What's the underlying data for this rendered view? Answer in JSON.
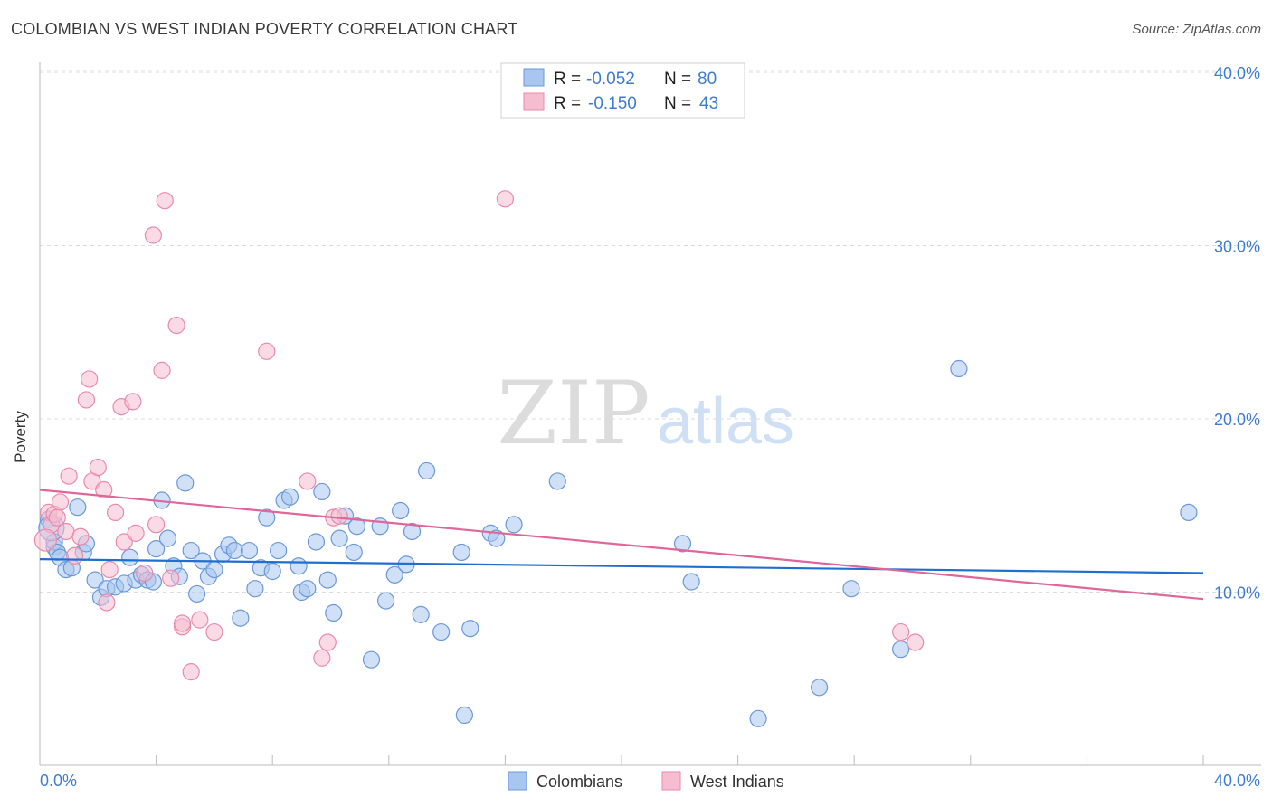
{
  "header": {
    "title": "COLOMBIAN VS WEST INDIAN POVERTY CORRELATION CHART",
    "source": "Source: ZipAtlas.com"
  },
  "watermark": {
    "zip": "ZIP",
    "atlas": "atlas"
  },
  "legend_top": {
    "rows": [
      {
        "r_label": "R = ",
        "r_value": "-0.052",
        "n_label": "N = ",
        "n_value": "80"
      },
      {
        "r_label": "R = ",
        "r_value": "-0.150",
        "n_label": "N = ",
        "n_value": "43"
      }
    ]
  },
  "legend_bottom": [
    "Colombians",
    "West Indians"
  ],
  "colors": {
    "blue_fill": "#a8c6f0",
    "blue_stroke": "#6b98d8",
    "blue_line": "#1f6fd1",
    "pink_fill": "#f6bdd0",
    "pink_stroke": "#e98aab",
    "pink_line": "#e0669a",
    "tick_label": "#3f7bd0",
    "grid": "#dcdcdc"
  },
  "chart_data": {
    "type": "scatter",
    "ylabel": "Poverty",
    "xlim": [
      0,
      40
    ],
    "ylim": [
      0,
      40
    ],
    "x_tick_labels": [
      "0.0%",
      "40.0%"
    ],
    "y_ticks": [
      10,
      20,
      30,
      40
    ],
    "y_tick_labels": [
      "10.0%",
      "20.0%",
      "30.0%",
      "40.0%"
    ],
    "grid": true,
    "series": [
      {
        "name": "Colombians",
        "trend": {
          "x": [
            0,
            40
          ],
          "y": [
            11.9,
            11.1
          ]
        },
        "points": [
          [
            0.3,
            14.2
          ],
          [
            0.5,
            12.6
          ],
          [
            0.5,
            12.9
          ],
          [
            0.6,
            12.3
          ],
          [
            0.7,
            12.0
          ],
          [
            0.9,
            11.3
          ],
          [
            1.1,
            11.4
          ],
          [
            1.3,
            14.9
          ],
          [
            1.5,
            12.3
          ],
          [
            1.6,
            12.8
          ],
          [
            1.9,
            10.7
          ],
          [
            2.1,
            9.7
          ],
          [
            2.3,
            10.2
          ],
          [
            2.6,
            10.3
          ],
          [
            2.9,
            10.5
          ],
          [
            3.1,
            12.0
          ],
          [
            3.3,
            10.7
          ],
          [
            3.5,
            11.0
          ],
          [
            3.7,
            10.7
          ],
          [
            3.9,
            10.6
          ],
          [
            4.0,
            12.5
          ],
          [
            4.2,
            15.3
          ],
          [
            4.4,
            13.1
          ],
          [
            4.6,
            11.5
          ],
          [
            4.8,
            10.9
          ],
          [
            5.0,
            16.3
          ],
          [
            5.2,
            12.4
          ],
          [
            5.4,
            9.9
          ],
          [
            5.6,
            11.8
          ],
          [
            5.8,
            10.9
          ],
          [
            6.0,
            11.3
          ],
          [
            6.3,
            12.2
          ],
          [
            6.5,
            12.7
          ],
          [
            6.7,
            12.4
          ],
          [
            6.9,
            8.5
          ],
          [
            7.2,
            12.4
          ],
          [
            7.4,
            10.2
          ],
          [
            7.6,
            11.4
          ],
          [
            7.8,
            14.3
          ],
          [
            8.0,
            11.2
          ],
          [
            8.2,
            12.4
          ],
          [
            8.4,
            15.3
          ],
          [
            8.6,
            15.5
          ],
          [
            8.9,
            11.5
          ],
          [
            9.0,
            10.0
          ],
          [
            9.2,
            10.2
          ],
          [
            9.5,
            12.9
          ],
          [
            9.7,
            15.8
          ],
          [
            9.9,
            10.7
          ],
          [
            10.1,
            8.8
          ],
          [
            10.3,
            13.1
          ],
          [
            10.5,
            14.4
          ],
          [
            10.8,
            12.3
          ],
          [
            10.9,
            13.8
          ],
          [
            11.4,
            6.1
          ],
          [
            11.7,
            13.8
          ],
          [
            11.9,
            9.5
          ],
          [
            12.2,
            11.0
          ],
          [
            12.4,
            14.7
          ],
          [
            12.6,
            11.6
          ],
          [
            12.8,
            13.5
          ],
          [
            13.1,
            8.7
          ],
          [
            13.3,
            17.0
          ],
          [
            13.8,
            7.7
          ],
          [
            14.5,
            12.3
          ],
          [
            14.6,
            2.9
          ],
          [
            14.8,
            7.9
          ],
          [
            15.5,
            13.4
          ],
          [
            15.7,
            13.1
          ],
          [
            16.3,
            13.9
          ],
          [
            17.8,
            16.4
          ],
          [
            22.1,
            12.8
          ],
          [
            22.4,
            10.6
          ],
          [
            24.7,
            2.7
          ],
          [
            26.8,
            4.5
          ],
          [
            27.9,
            10.2
          ],
          [
            29.6,
            6.7
          ],
          [
            31.6,
            22.9
          ],
          [
            39.5,
            14.6
          ],
          [
            0.4,
            13.7
          ]
        ]
      },
      {
        "name": "West Indians",
        "trend": {
          "x": [
            0,
            40
          ],
          "y": [
            15.9,
            9.6
          ]
        },
        "points": [
          [
            0.3,
            14.6
          ],
          [
            0.4,
            13.9
          ],
          [
            0.5,
            14.5
          ],
          [
            0.6,
            14.3
          ],
          [
            0.7,
            15.2
          ],
          [
            0.9,
            13.5
          ],
          [
            1.0,
            16.7
          ],
          [
            1.2,
            12.1
          ],
          [
            1.4,
            13.2
          ],
          [
            1.6,
            21.1
          ],
          [
            1.7,
            22.3
          ],
          [
            1.8,
            16.4
          ],
          [
            2.0,
            17.2
          ],
          [
            2.2,
            15.9
          ],
          [
            2.3,
            9.4
          ],
          [
            2.4,
            11.3
          ],
          [
            2.6,
            14.6
          ],
          [
            2.8,
            20.7
          ],
          [
            2.9,
            12.9
          ],
          [
            3.2,
            21.0
          ],
          [
            3.3,
            13.4
          ],
          [
            3.6,
            11.1
          ],
          [
            3.9,
            30.6
          ],
          [
            4.0,
            13.9
          ],
          [
            4.2,
            22.8
          ],
          [
            4.3,
            32.6
          ],
          [
            4.5,
            10.8
          ],
          [
            4.7,
            25.4
          ],
          [
            4.9,
            8.0
          ],
          [
            4.9,
            8.2
          ],
          [
            5.2,
            5.4
          ],
          [
            5.5,
            8.4
          ],
          [
            6.0,
            7.7
          ],
          [
            7.8,
            23.9
          ],
          [
            9.2,
            16.4
          ],
          [
            9.9,
            7.1
          ],
          [
            10.1,
            14.3
          ],
          [
            10.3,
            14.4
          ],
          [
            9.7,
            6.2
          ],
          [
            16.0,
            32.7
          ],
          [
            29.6,
            7.7
          ],
          [
            30.1,
            7.1
          ],
          [
            0.2,
            13.0
          ]
        ]
      }
    ]
  }
}
